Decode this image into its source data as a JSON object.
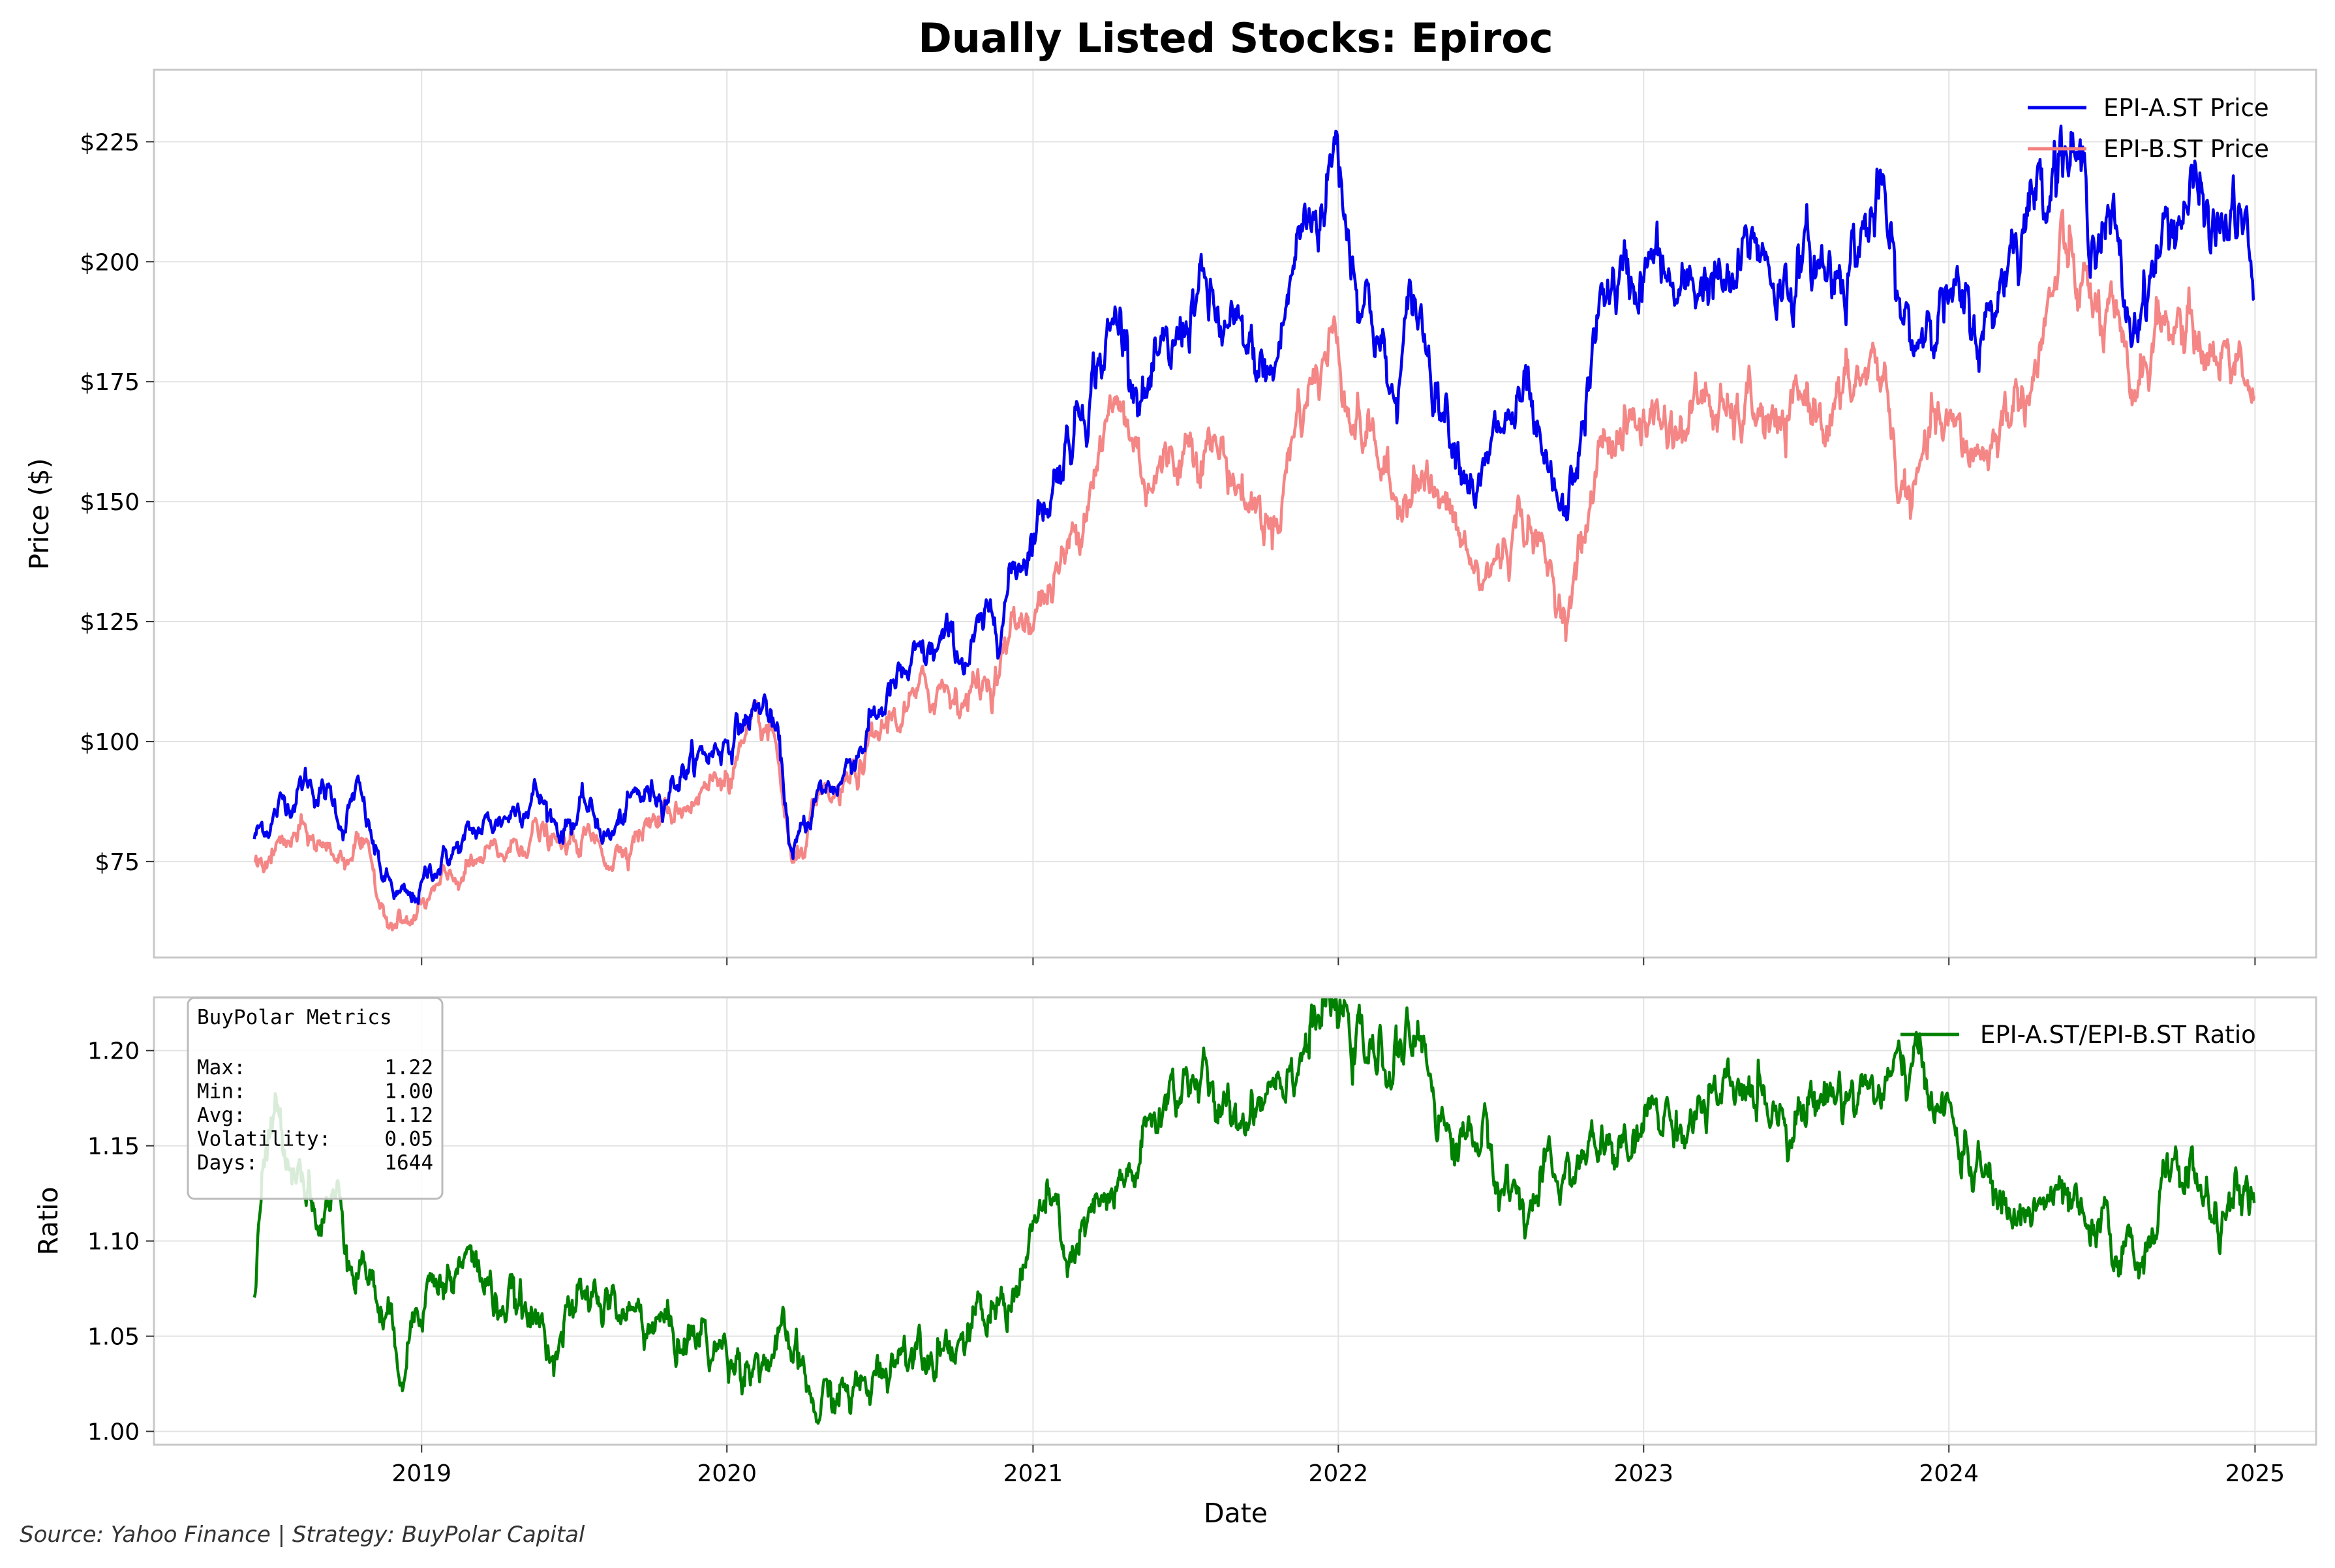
{
  "footer": {
    "source": "Source: Yahoo Finance | Strategy: BuyPolar Capital"
  },
  "chart_data": [
    {
      "type": "line",
      "title": "Dually Listed Stocks: Epiroc",
      "xlabel": "",
      "ylabel": "Price ($)",
      "ylim": [
        55,
        240
      ],
      "xlim": [
        "2018-02-15",
        "2025-03-15"
      ],
      "yticks": [
        75,
        100,
        125,
        150,
        175,
        200,
        225
      ],
      "ytick_labels": [
        "$75",
        "$100",
        "$125",
        "$150",
        "$175",
        "$200",
        "$225"
      ],
      "grid": true,
      "legend": "top-right",
      "series": [
        {
          "name": "EPI-A.ST Price",
          "color": "#0000ee",
          "x": [
            "2018-06-15",
            "2018-07-15",
            "2018-08-15",
            "2018-09-15",
            "2018-10-01",
            "2018-10-15",
            "2018-11-01",
            "2018-11-15",
            "2018-12-01",
            "2018-12-20",
            "2019-01-15",
            "2019-02-15",
            "2019-03-15",
            "2019-04-15",
            "2019-05-15",
            "2019-06-15",
            "2019-07-15",
            "2019-08-15",
            "2019-09-15",
            "2019-10-15",
            "2019-11-15",
            "2019-12-15",
            "2020-01-15",
            "2020-02-15",
            "2020-03-01",
            "2020-03-20",
            "2020-04-15",
            "2020-05-15",
            "2020-06-15",
            "2020-07-15",
            "2020-08-15",
            "2020-09-15",
            "2020-10-15",
            "2020-11-15",
            "2020-12-15",
            "2021-01-15",
            "2021-02-15",
            "2021-03-15",
            "2021-04-15",
            "2021-05-15",
            "2021-06-15",
            "2021-07-15",
            "2021-08-15",
            "2021-09-15",
            "2021-10-15",
            "2021-11-15",
            "2021-12-10",
            "2021-12-30",
            "2022-01-20",
            "2022-02-15",
            "2022-03-08",
            "2022-04-01",
            "2022-05-01",
            "2022-06-01",
            "2022-06-20",
            "2022-07-15",
            "2022-08-15",
            "2022-09-01",
            "2022-09-30",
            "2022-10-20",
            "2022-11-15",
            "2022-12-15",
            "2023-01-15",
            "2023-02-15",
            "2023-03-15",
            "2023-04-15",
            "2023-05-15",
            "2023-06-15",
            "2023-07-15",
            "2023-08-15",
            "2023-09-15",
            "2023-10-15",
            "2023-10-31",
            "2023-11-20",
            "2023-12-15",
            "2024-01-15",
            "2024-02-15",
            "2024-03-15",
            "2024-04-15",
            "2024-05-15",
            "2024-06-15",
            "2024-07-15",
            "2024-08-05",
            "2024-08-20",
            "2024-09-15",
            "2024-10-15",
            "2024-11-15",
            "2024-12-15",
            "2024-12-31"
          ],
          "values": [
            80,
            86,
            92,
            88,
            83,
            90,
            80,
            72,
            68,
            66,
            74,
            78,
            82,
            85,
            90,
            82,
            86,
            80,
            88,
            90,
            95,
            98,
            103,
            108,
            100,
            75,
            88,
            92,
            102,
            110,
            115,
            120,
            118,
            125,
            138,
            150,
            165,
            178,
            188,
            172,
            178,
            195,
            185,
            180,
            175,
            205,
            212,
            225,
            200,
            188,
            168,
            192,
            175,
            160,
            152,
            165,
            170,
            155,
            145,
            165,
            195,
            195,
            200,
            190,
            198,
            192,
            205,
            195,
            200,
            198,
            205,
            212,
            190,
            182,
            195,
            188,
            185,
            205,
            215,
            228,
            212,
            205,
            185,
            195,
            205,
            215,
            205,
            210,
            192
          ],
          "area_hint": ""
        },
        {
          "name": "EPI-B.ST Price",
          "color": "#f48080",
          "x": [
            "2018-06-15",
            "2018-07-15",
            "2018-08-15",
            "2018-09-15",
            "2018-10-01",
            "2018-10-15",
            "2018-11-01",
            "2018-11-15",
            "2018-12-01",
            "2018-12-20",
            "2019-01-15",
            "2019-02-15",
            "2019-03-15",
            "2019-04-15",
            "2019-05-15",
            "2019-06-15",
            "2019-07-15",
            "2019-08-15",
            "2019-09-15",
            "2019-10-15",
            "2019-11-15",
            "2019-12-15",
            "2020-01-15",
            "2020-02-15",
            "2020-03-01",
            "2020-03-20",
            "2020-04-15",
            "2020-05-15",
            "2020-06-15",
            "2020-07-15",
            "2020-08-15",
            "2020-09-15",
            "2020-10-15",
            "2020-11-15",
            "2020-12-15",
            "2021-01-15",
            "2021-02-15",
            "2021-03-15",
            "2021-04-15",
            "2021-05-15",
            "2021-06-15",
            "2021-07-15",
            "2021-08-15",
            "2021-09-15",
            "2021-10-15",
            "2021-11-15",
            "2021-12-10",
            "2021-12-30",
            "2022-01-20",
            "2022-02-15",
            "2022-03-08",
            "2022-04-01",
            "2022-05-01",
            "2022-06-01",
            "2022-06-20",
            "2022-07-15",
            "2022-08-15",
            "2022-09-01",
            "2022-09-30",
            "2022-10-20",
            "2022-11-15",
            "2022-12-15",
            "2023-01-15",
            "2023-02-15",
            "2023-03-15",
            "2023-04-15",
            "2023-05-15",
            "2023-06-15",
            "2023-07-15",
            "2023-08-15",
            "2023-09-15",
            "2023-10-15",
            "2023-10-31",
            "2023-11-20",
            "2023-12-15",
            "2024-01-15",
            "2024-02-15",
            "2024-03-15",
            "2024-04-15",
            "2024-05-15",
            "2024-06-15",
            "2024-07-15",
            "2024-08-05",
            "2024-08-20",
            "2024-09-15",
            "2024-10-15",
            "2024-11-15",
            "2024-12-15",
            "2024-12-31"
          ],
          "values": [
            73,
            78,
            80,
            77,
            76,
            80,
            73,
            66,
            63,
            62,
            68,
            72,
            75,
            77,
            82,
            77,
            80,
            76,
            82,
            84,
            88,
            91,
            97,
            102,
            97,
            72,
            85,
            88,
            96,
            105,
            108,
            112,
            110,
            114,
            125,
            130,
            140,
            160,
            170,
            156,
            158,
            165,
            160,
            150,
            145,
            170,
            178,
            185,
            168,
            162,
            148,
            158,
            150,
            140,
            132,
            140,
            148,
            138,
            128,
            140,
            165,
            165,
            168,
            165,
            172,
            165,
            170,
            162,
            172,
            168,
            175,
            178,
            155,
            150,
            165,
            162,
            160,
            170,
            178,
            200,
            192,
            185,
            170,
            180,
            188,
            185,
            180,
            182,
            172
          ]
        }
      ]
    },
    {
      "type": "line",
      "title": "",
      "xlabel": "Date",
      "ylabel": "Ratio",
      "ylim": [
        0.993,
        1.228
      ],
      "xlim": [
        "2018-02-15",
        "2025-03-15"
      ],
      "yticks": [
        1.0,
        1.05,
        1.1,
        1.15,
        1.2
      ],
      "ytick_labels": [
        "1.00",
        "1.05",
        "1.10",
        "1.15",
        "1.20"
      ],
      "xticks": [
        "2019-01-01",
        "2020-01-01",
        "2021-01-01",
        "2022-01-01",
        "2023-01-01",
        "2024-01-01",
        "2025-01-01"
      ],
      "xtick_labels": [
        "2019",
        "2020",
        "2021",
        "2022",
        "2023",
        "2024",
        "2025"
      ],
      "grid": true,
      "legend": "top-right",
      "series": [
        {
          "name": "EPI-A.ST/EPI-B.ST Ratio",
          "color": "#008000",
          "x": [
            "2018-06-15",
            "2018-06-25",
            "2018-07-10",
            "2018-07-25",
            "2018-08-15",
            "2018-09-01",
            "2018-09-20",
            "2018-10-10",
            "2018-10-25",
            "2018-11-10",
            "2018-11-25",
            "2018-12-10",
            "2019-01-01",
            "2019-02-01",
            "2019-03-01",
            "2019-04-01",
            "2019-05-01",
            "2019-06-01",
            "2019-07-01",
            "2019-08-01",
            "2019-09-01",
            "2019-10-01",
            "2019-11-01",
            "2019-12-01",
            "2020-01-01",
            "2020-02-01",
            "2020-03-01",
            "2020-03-20",
            "2020-04-15",
            "2020-05-15",
            "2020-06-15",
            "2020-07-15",
            "2020-08-15",
            "2020-09-15",
            "2020-10-15",
            "2020-11-15",
            "2020-12-15",
            "2021-01-15",
            "2021-02-15",
            "2021-03-15",
            "2021-04-15",
            "2021-05-15",
            "2021-06-15",
            "2021-07-15",
            "2021-08-15",
            "2021-09-15",
            "2021-10-15",
            "2021-11-15",
            "2021-12-15",
            "2022-01-15",
            "2022-02-15",
            "2022-03-15",
            "2022-04-15",
            "2022-05-15",
            "2022-06-15",
            "2022-07-15",
            "2022-08-15",
            "2022-09-15",
            "2022-10-15",
            "2022-11-15",
            "2022-12-15",
            "2023-01-15",
            "2023-02-15",
            "2023-03-15",
            "2023-04-15",
            "2023-05-15",
            "2023-06-15",
            "2023-07-15",
            "2023-08-15",
            "2023-09-15",
            "2023-10-15",
            "2023-11-15",
            "2023-12-15",
            "2024-01-15",
            "2024-02-15",
            "2024-03-15",
            "2024-04-15",
            "2024-05-15",
            "2024-06-15",
            "2024-07-15",
            "2024-08-15",
            "2024-09-15",
            "2024-10-15",
            "2024-11-15",
            "2024-12-15",
            "2024-12-31"
          ],
          "values": [
            1.07,
            1.13,
            1.16,
            1.15,
            1.14,
            1.11,
            1.12,
            1.1,
            1.09,
            1.07,
            1.05,
            1.04,
            1.08,
            1.08,
            1.09,
            1.07,
            1.06,
            1.05,
            1.06,
            1.07,
            1.06,
            1.06,
            1.05,
            1.05,
            1.04,
            1.04,
            1.04,
            1.04,
            1.01,
            1.02,
            1.02,
            1.04,
            1.05,
            1.05,
            1.05,
            1.06,
            1.08,
            1.12,
            1.09,
            1.11,
            1.12,
            1.15,
            1.18,
            1.19,
            1.16,
            1.17,
            1.19,
            1.2,
            1.22,
            1.21,
            1.19,
            1.2,
            1.2,
            1.15,
            1.16,
            1.13,
            1.12,
            1.13,
            1.14,
            1.15,
            1.14,
            1.17,
            1.16,
            1.17,
            1.17,
            1.18,
            1.17,
            1.17,
            1.18,
            1.18,
            1.18,
            1.19,
            1.18,
            1.15,
            1.13,
            1.11,
            1.12,
            1.12,
            1.1,
            1.1,
            1.09,
            1.13,
            1.14,
            1.11,
            1.12,
            1.12
          ]
        }
      ],
      "metrics_box": {
        "title": "BuyPolar Metrics",
        "rows": [
          {
            "label": "Max:",
            "value": "1.22"
          },
          {
            "label": "Min:",
            "value": "1.00"
          },
          {
            "label": "Avg:",
            "value": "1.12"
          },
          {
            "label": "Volatility:",
            "value": "0.05"
          },
          {
            "label": "Days:",
            "value": "1644"
          }
        ]
      }
    }
  ]
}
